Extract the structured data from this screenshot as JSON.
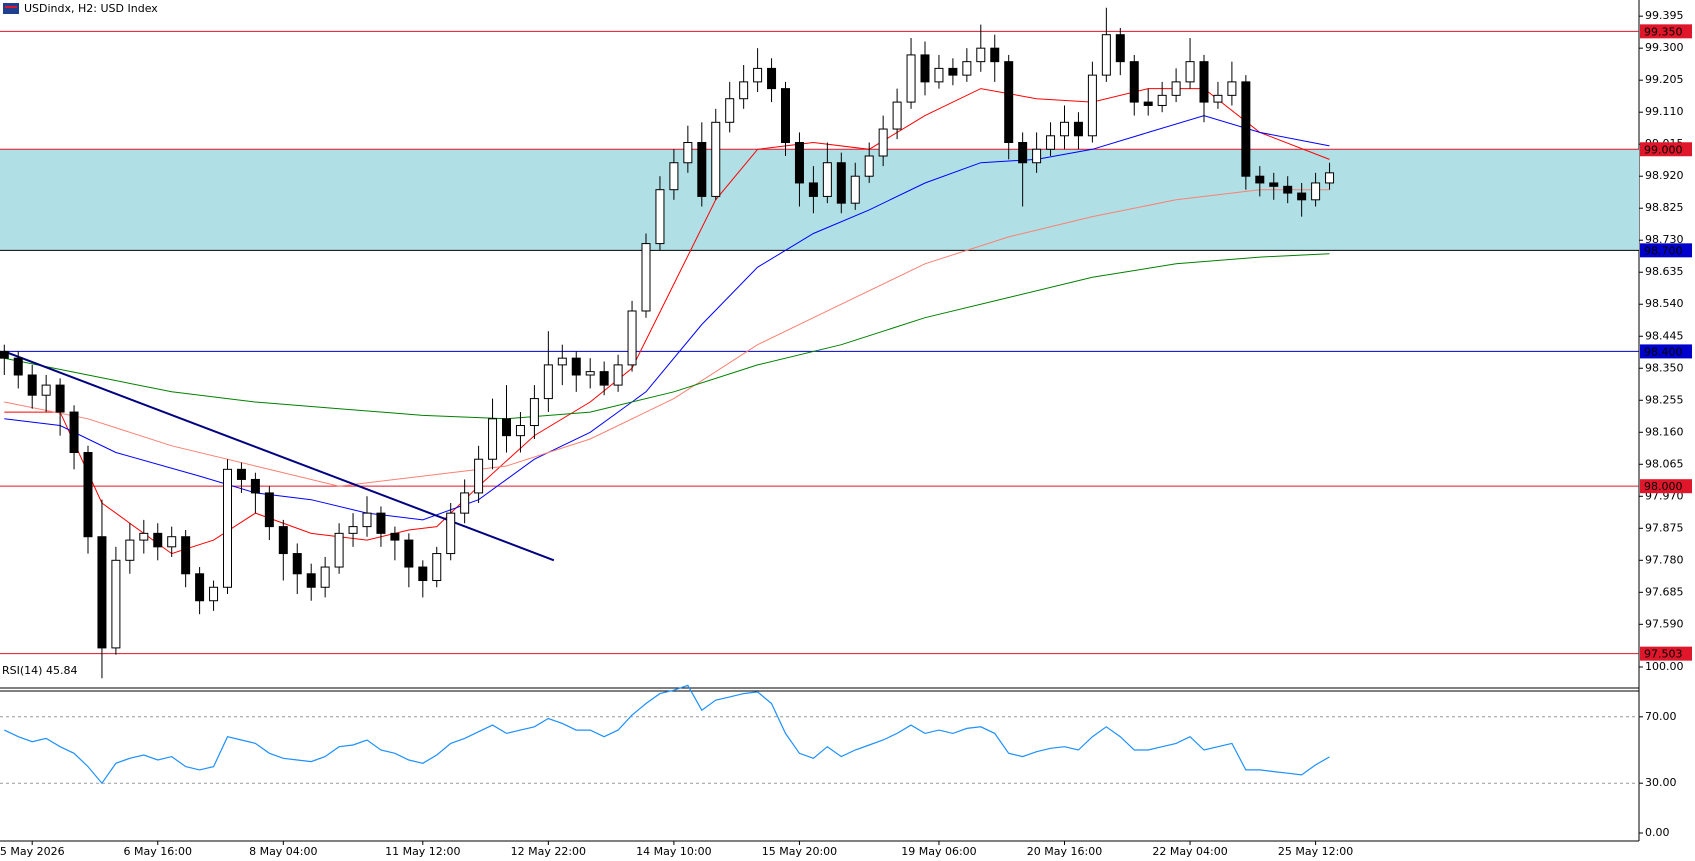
{
  "chart_data": [
    {
      "type": "candlestick",
      "title": "USDindx, H2:  USD Index",
      "categories": [
        null,
        null,
        "5 May 2026",
        null,
        null,
        null,
        null,
        null,
        null,
        null,
        null,
        "6 May 16:00",
        null,
        null,
        null,
        null,
        null,
        null,
        null,
        null,
        "8 May 04:00",
        null,
        null,
        null,
        null,
        null,
        null,
        null,
        null,
        null,
        "11 May 12:00",
        null,
        null,
        null,
        null,
        null,
        null,
        null,
        null,
        "12 May 22:00",
        null,
        null,
        null,
        null,
        null,
        null,
        null,
        null,
        "14 May 10:00",
        null,
        null,
        null,
        null,
        null,
        null,
        null,
        null,
        "15 May 20:00",
        null,
        null,
        null,
        null,
        null,
        null,
        null,
        null,
        null,
        "19 May 06:00",
        null,
        null,
        null,
        null,
        null,
        null,
        null,
        null,
        "20 May 16:00",
        null,
        null,
        null,
        null,
        null,
        null,
        null,
        null,
        "22 May 04:00",
        null,
        null,
        null,
        null,
        null,
        null,
        null,
        null,
        "25 May 12:00",
        null
      ],
      "open": [
        98.4,
        98.38,
        98.33,
        98.27,
        98.3,
        98.22,
        98.1,
        97.85,
        97.52,
        97.78,
        97.84,
        97.86,
        97.82,
        97.85,
        97.74,
        97.66,
        97.7,
        98.05,
        98.02,
        97.98,
        97.88,
        97.8,
        97.74,
        97.7,
        97.76,
        97.86,
        97.88,
        97.92,
        97.86,
        97.84,
        97.76,
        97.72,
        97.8,
        97.92,
        97.98,
        98.08,
        98.2,
        98.15,
        98.18,
        98.26,
        98.36,
        98.38,
        98.33,
        98.34,
        98.3,
        98.36,
        98.52,
        98.72,
        98.88,
        98.96,
        99.02,
        98.86,
        99.08,
        99.15,
        99.2,
        99.24,
        99.18,
        99.02,
        98.9,
        98.86,
        98.96,
        98.84,
        98.92,
        98.98,
        99.06,
        99.14,
        99.28,
        99.2,
        99.24,
        99.22,
        99.26,
        99.3,
        99.26,
        99.02,
        98.96,
        99.0,
        99.04,
        99.08,
        99.04,
        99.22,
        99.34,
        99.26,
        99.14,
        99.13,
        99.16,
        99.2,
        99.26,
        99.14,
        99.16,
        99.2,
        98.92,
        98.9,
        98.89,
        98.87,
        98.85,
        98.9
      ],
      "high": [
        98.42,
        98.4,
        98.36,
        98.33,
        98.32,
        98.24,
        98.12,
        97.96,
        97.82,
        97.89,
        97.9,
        97.89,
        97.88,
        97.87,
        97.76,
        97.72,
        98.08,
        98.07,
        98.04,
        98.0,
        97.9,
        97.83,
        97.77,
        97.79,
        97.89,
        97.92,
        97.97,
        97.94,
        97.88,
        97.86,
        97.78,
        97.82,
        97.95,
        98.02,
        98.12,
        98.26,
        98.3,
        98.22,
        98.3,
        98.46,
        98.42,
        98.4,
        98.38,
        98.37,
        98.39,
        98.55,
        98.75,
        98.92,
        99.0,
        99.07,
        99.08,
        99.12,
        99.2,
        99.25,
        99.3,
        99.27,
        99.2,
        99.05,
        98.95,
        99.02,
        98.99,
        98.96,
        99.02,
        99.1,
        99.18,
        99.33,
        99.32,
        99.28,
        99.27,
        99.3,
        99.37,
        99.34,
        99.28,
        99.05,
        99.05,
        99.08,
        99.13,
        99.11,
        99.26,
        99.42,
        99.36,
        99.28,
        99.18,
        99.2,
        99.24,
        99.33,
        99.28,
        99.2,
        99.26,
        99.22,
        98.95,
        98.93,
        98.92,
        98.9,
        98.93,
        98.96
      ],
      "low": [
        98.33,
        98.29,
        98.23,
        98.22,
        98.15,
        98.05,
        97.8,
        97.43,
        97.5,
        97.74,
        97.8,
        97.78,
        97.79,
        97.7,
        97.62,
        97.63,
        97.68,
        97.98,
        97.92,
        97.84,
        97.72,
        97.68,
        97.66,
        97.67,
        97.74,
        97.82,
        97.85,
        97.82,
        97.78,
        97.7,
        97.67,
        97.7,
        97.78,
        97.89,
        97.95,
        98.05,
        98.1,
        98.1,
        98.14,
        98.22,
        98.3,
        98.28,
        98.29,
        98.27,
        98.28,
        98.34,
        98.5,
        98.7,
        98.85,
        98.93,
        98.83,
        98.85,
        99.05,
        99.12,
        99.17,
        99.14,
        98.98,
        98.83,
        98.81,
        98.84,
        98.81,
        98.82,
        98.9,
        98.95,
        99.03,
        99.12,
        99.16,
        99.18,
        99.19,
        99.2,
        99.23,
        99.2,
        98.97,
        98.83,
        98.93,
        98.98,
        99.0,
        99.0,
        99.02,
        99.2,
        99.22,
        99.1,
        99.1,
        99.11,
        99.14,
        99.18,
        99.08,
        99.12,
        99.13,
        98.88,
        98.86,
        98.85,
        98.84,
        98.8,
        98.83,
        98.88
      ],
      "close": [
        98.38,
        98.33,
        98.27,
        98.3,
        98.22,
        98.1,
        97.85,
        97.52,
        97.78,
        97.84,
        97.86,
        97.82,
        97.85,
        97.74,
        97.66,
        97.7,
        98.05,
        98.02,
        97.98,
        97.88,
        97.8,
        97.74,
        97.7,
        97.76,
        97.86,
        97.88,
        97.92,
        97.86,
        97.84,
        97.76,
        97.72,
        97.8,
        97.92,
        97.98,
        98.08,
        98.2,
        98.15,
        98.18,
        98.26,
        98.36,
        98.38,
        98.33,
        98.34,
        98.3,
        98.36,
        98.52,
        98.72,
        98.88,
        98.96,
        99.02,
        98.86,
        99.08,
        99.15,
        99.2,
        99.24,
        99.18,
        99.02,
        98.9,
        98.86,
        98.96,
        98.84,
        98.92,
        98.98,
        99.06,
        99.14,
        99.28,
        99.2,
        99.24,
        99.22,
        99.26,
        99.3,
        99.26,
        99.02,
        98.96,
        99.0,
        99.04,
        99.08,
        99.04,
        99.22,
        99.34,
        99.26,
        99.14,
        99.13,
        99.16,
        99.2,
        99.26,
        99.14,
        99.16,
        99.2,
        98.92,
        98.9,
        98.89,
        98.87,
        98.85,
        98.9,
        98.93
      ],
      "up_color": "#ffffff",
      "down_color": "#000000",
      "ma": [
        {
          "color": "#ff0000",
          "x": [
            0,
            4,
            7,
            12,
            15,
            18,
            22,
            26,
            29,
            31,
            34,
            38,
            42,
            45,
            48,
            51,
            54,
            58,
            62,
            66,
            70,
            74,
            78,
            82,
            86,
            90,
            95
          ],
          "values": [
            98.22,
            98.22,
            97.95,
            97.8,
            97.84,
            97.92,
            97.86,
            97.84,
            97.87,
            97.88,
            98.0,
            98.15,
            98.25,
            98.35,
            98.6,
            98.85,
            99.0,
            99.02,
            99.0,
            99.1,
            99.18,
            99.15,
            99.14,
            99.18,
            99.18,
            99.05,
            98.97
          ]
        },
        {
          "color": "#0000ff",
          "x": [
            0,
            4,
            8,
            14,
            18,
            22,
            26,
            30,
            34,
            38,
            42,
            46,
            50,
            54,
            58,
            62,
            66,
            70,
            74,
            78,
            82,
            86,
            90,
            95
          ],
          "values": [
            98.2,
            98.18,
            98.1,
            98.03,
            97.98,
            97.96,
            97.92,
            97.9,
            97.96,
            98.08,
            98.16,
            98.28,
            98.48,
            98.65,
            98.75,
            98.82,
            98.9,
            98.96,
            98.97,
            99.0,
            99.05,
            99.1,
            99.05,
            99.01
          ]
        },
        {
          "color": "#fa8072",
          "x": [
            0,
            6,
            12,
            18,
            24,
            30,
            36,
            42,
            48,
            54,
            60,
            66,
            72,
            78,
            84,
            90,
            95
          ],
          "values": [
            98.25,
            98.2,
            98.12,
            98.06,
            98.0,
            98.03,
            98.06,
            98.14,
            98.26,
            98.42,
            98.54,
            98.66,
            98.74,
            98.8,
            98.85,
            98.88,
            98.88
          ]
        },
        {
          "color": "#008000",
          "x": [
            0,
            6,
            12,
            18,
            24,
            30,
            36,
            42,
            48,
            54,
            60,
            66,
            72,
            78,
            84,
            90,
            95
          ],
          "values": [
            98.38,
            98.33,
            98.28,
            98.25,
            98.23,
            98.21,
            98.2,
            98.22,
            98.28,
            98.36,
            98.42,
            98.5,
            98.56,
            98.62,
            98.66,
            98.68,
            98.69
          ]
        }
      ],
      "trendline": {
        "color": "#000080",
        "x": [
          0,
          39.4
        ],
        "values": [
          98.4,
          97.78
        ]
      },
      "zone": [
        98.7,
        99.0
      ],
      "zone_color": "#b0e0e6",
      "levels": [
        {
          "value": 99.35,
          "label": "99.350",
          "color": "#e0162b",
          "label_color": "#e0162b"
        },
        {
          "value": 99.0,
          "label": "99.000",
          "color": "#e0162b",
          "label_color": "#e0162b"
        },
        {
          "value": 98.7,
          "label": "98.700",
          "color": "#000000",
          "label_color": "#0000cd"
        },
        {
          "value": 98.4,
          "label": "98.400",
          "color": "#0000cd",
          "label_color": "#0000cd"
        },
        {
          "value": 98.0,
          "label": "98.000",
          "color": "#e0162b",
          "label_color": "#e0162b"
        },
        {
          "value": 97.503,
          "label": "97.503",
          "color": "#e0162b",
          "label_color": "#e0162b"
        }
      ],
      "ylim": [
        97.401,
        99.443
      ],
      "yticks": [
        99.395,
        {
          "value": 99.3,
          "label": "99.300"
        },
        99.205,
        {
          "value": 99.11,
          "label": "99.110"
        },
        99.015,
        {
          "value": 98.92,
          "label": "98.920"
        },
        98.825,
        {
          "value": 98.73,
          "label": "98.730"
        },
        98.635,
        {
          "value": 98.54,
          "label": "98.540"
        },
        98.445,
        {
          "value": 98.35,
          "label": "98.350"
        },
        98.255,
        {
          "value": 98.16,
          "label": "98.160"
        },
        98.065,
        {
          "value": 97.97,
          "label": "97.970"
        },
        97.875,
        {
          "value": 97.78,
          "label": "97.780"
        },
        97.685,
        {
          "value": 97.59,
          "label": "97.590"
        }
      ]
    },
    {
      "type": "line",
      "title": "RSI(14) 45.84",
      "color": "#1e90ff",
      "values": [
        62,
        58,
        55,
        57,
        52,
        48,
        40,
        30,
        42,
        45,
        47,
        44,
        46,
        40,
        38,
        40,
        58,
        56,
        54,
        48,
        45,
        44,
        43,
        46,
        52,
        53,
        56,
        50,
        48,
        44,
        42,
        47,
        54,
        57,
        61,
        65,
        60,
        62,
        64,
        69,
        66,
        62,
        62,
        58,
        62,
        71,
        78,
        84,
        86,
        89,
        74,
        80,
        82,
        84,
        85,
        78,
        60,
        48,
        45,
        52,
        46,
        50,
        53,
        56,
        60,
        65,
        60,
        62,
        60,
        63,
        64,
        60,
        48,
        46,
        49,
        51,
        52,
        50,
        58,
        64,
        58,
        50,
        50,
        52,
        54,
        58,
        50,
        52,
        54,
        38,
        38,
        37,
        36,
        35,
        41,
        45.84
      ],
      "ylim": [
        0,
        100
      ],
      "yticks": [
        {
          "value": 100,
          "label": "100.00"
        },
        {
          "value": 70,
          "label": "70.00"
        },
        {
          "value": 30,
          "label": "30.00"
        },
        {
          "value": 0,
          "label": "0.00"
        }
      ],
      "levels": [
        70,
        30
      ]
    }
  ]
}
